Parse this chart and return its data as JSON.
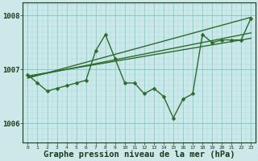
{
  "xlabel": "Graphe pression niveau de la mer (hPa)",
  "x": [
    0,
    1,
    2,
    3,
    4,
    5,
    6,
    7,
    8,
    9,
    10,
    11,
    12,
    13,
    14,
    15,
    16,
    17,
    18,
    19,
    20,
    21,
    22,
    23
  ],
  "y_main": [
    1006.9,
    1006.75,
    1006.6,
    1006.65,
    1006.7,
    1006.75,
    1006.8,
    1007.35,
    1007.65,
    1007.2,
    1006.75,
    1006.75,
    1006.55,
    1006.65,
    1006.5,
    1006.1,
    1006.45,
    1006.55,
    1007.65,
    1007.5,
    1007.55,
    1007.55,
    1007.55,
    1007.95
  ],
  "trend_line1_x": [
    0,
    23
  ],
  "trend_line1_y": [
    1006.88,
    1007.58
  ],
  "trend_line2_x": [
    0,
    23
  ],
  "trend_line2_y": [
    1006.86,
    1007.68
  ],
  "trend_line3_x": [
    0,
    23
  ],
  "trend_line3_y": [
    1006.84,
    1007.97
  ],
  "bg_color": "#cce8e8",
  "grid_major_color": "#88cccc",
  "grid_minor_color": "#aadddd",
  "line_color": "#2d6b2d",
  "label_color": "#1a3a1a",
  "ylim": [
    1005.65,
    1008.25
  ],
  "xlim": [
    -0.5,
    23.5
  ],
  "yticks": [
    1006.0,
    1007.0,
    1008.0
  ],
  "xlabel_fontsize": 7.5,
  "marker_size": 2.5,
  "linewidth": 1.0
}
